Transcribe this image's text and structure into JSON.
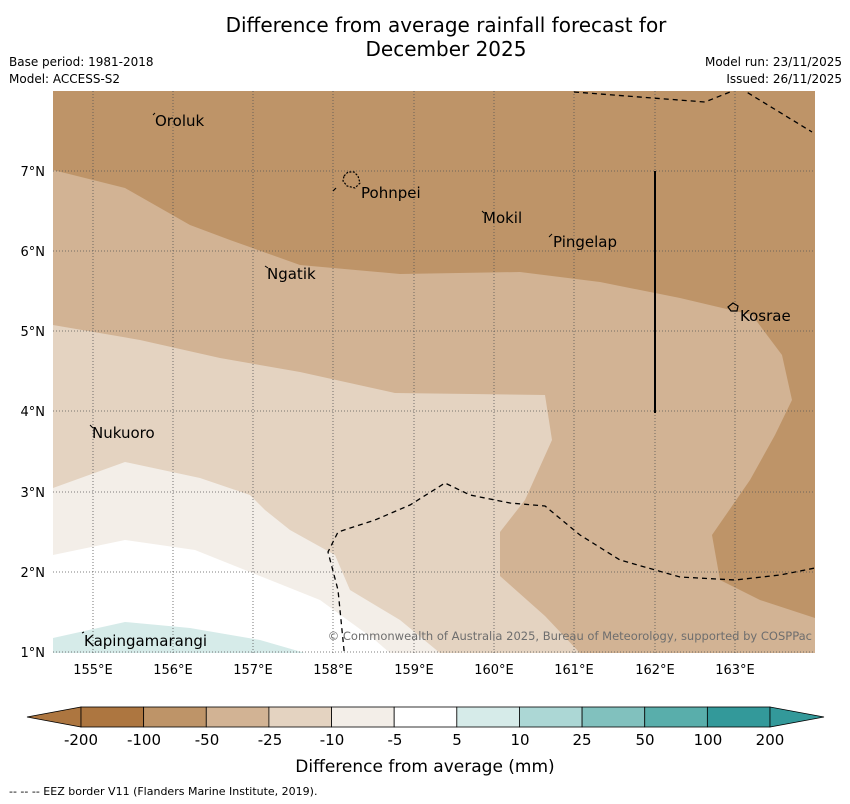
{
  "title": {
    "line1": "Difference from average rainfall forecast for",
    "line2": "December 2025"
  },
  "meta": {
    "base_period": "Base period: 1981-2018",
    "model": "Model: ACCESS-S2",
    "model_run": "Model run: 23/11/2025",
    "issued": "Issued: 26/11/2025"
  },
  "map": {
    "lon_labels": [
      "155°E",
      "156°E",
      "157°E",
      "158°E",
      "159°E",
      "160°E",
      "161°E",
      "162°E",
      "163°E"
    ],
    "lat_labels": [
      "7°N",
      "6°N",
      "5°N",
      "4°N",
      "3°N",
      "2°N",
      "1°N"
    ],
    "places": [
      {
        "name": "Oroluk"
      },
      {
        "name": "Pohnpei"
      },
      {
        "name": "Mokil"
      },
      {
        "name": "Pingelap"
      },
      {
        "name": "Ngatik"
      },
      {
        "name": "Kosrae"
      },
      {
        "name": "Nukuoro"
      },
      {
        "name": "Kapingamarangi"
      }
    ],
    "copyright": "© Commonwealth of Australia 2025, Bureau of Meteorology, supported by COSPPac"
  },
  "legend": {
    "tick_labels": [
      "-200",
      "-100",
      "-50",
      "-25",
      "-10",
      "-5",
      "5",
      "10",
      "25",
      "50",
      "100",
      "200"
    ],
    "colors": [
      "#ad7640",
      "#be9468",
      "#d2b394",
      "#e4d3c1",
      "#f3eee8",
      "#ffffff",
      "#d6ebe9",
      "#acd7d5",
      "#81c1be",
      "#59aeab",
      "#33999a"
    ],
    "title": "Difference from average (mm)"
  },
  "footer": {
    "eez_note": "--  --  -- EEZ border V11 (Flanders Marine Institute, 2019)."
  }
}
